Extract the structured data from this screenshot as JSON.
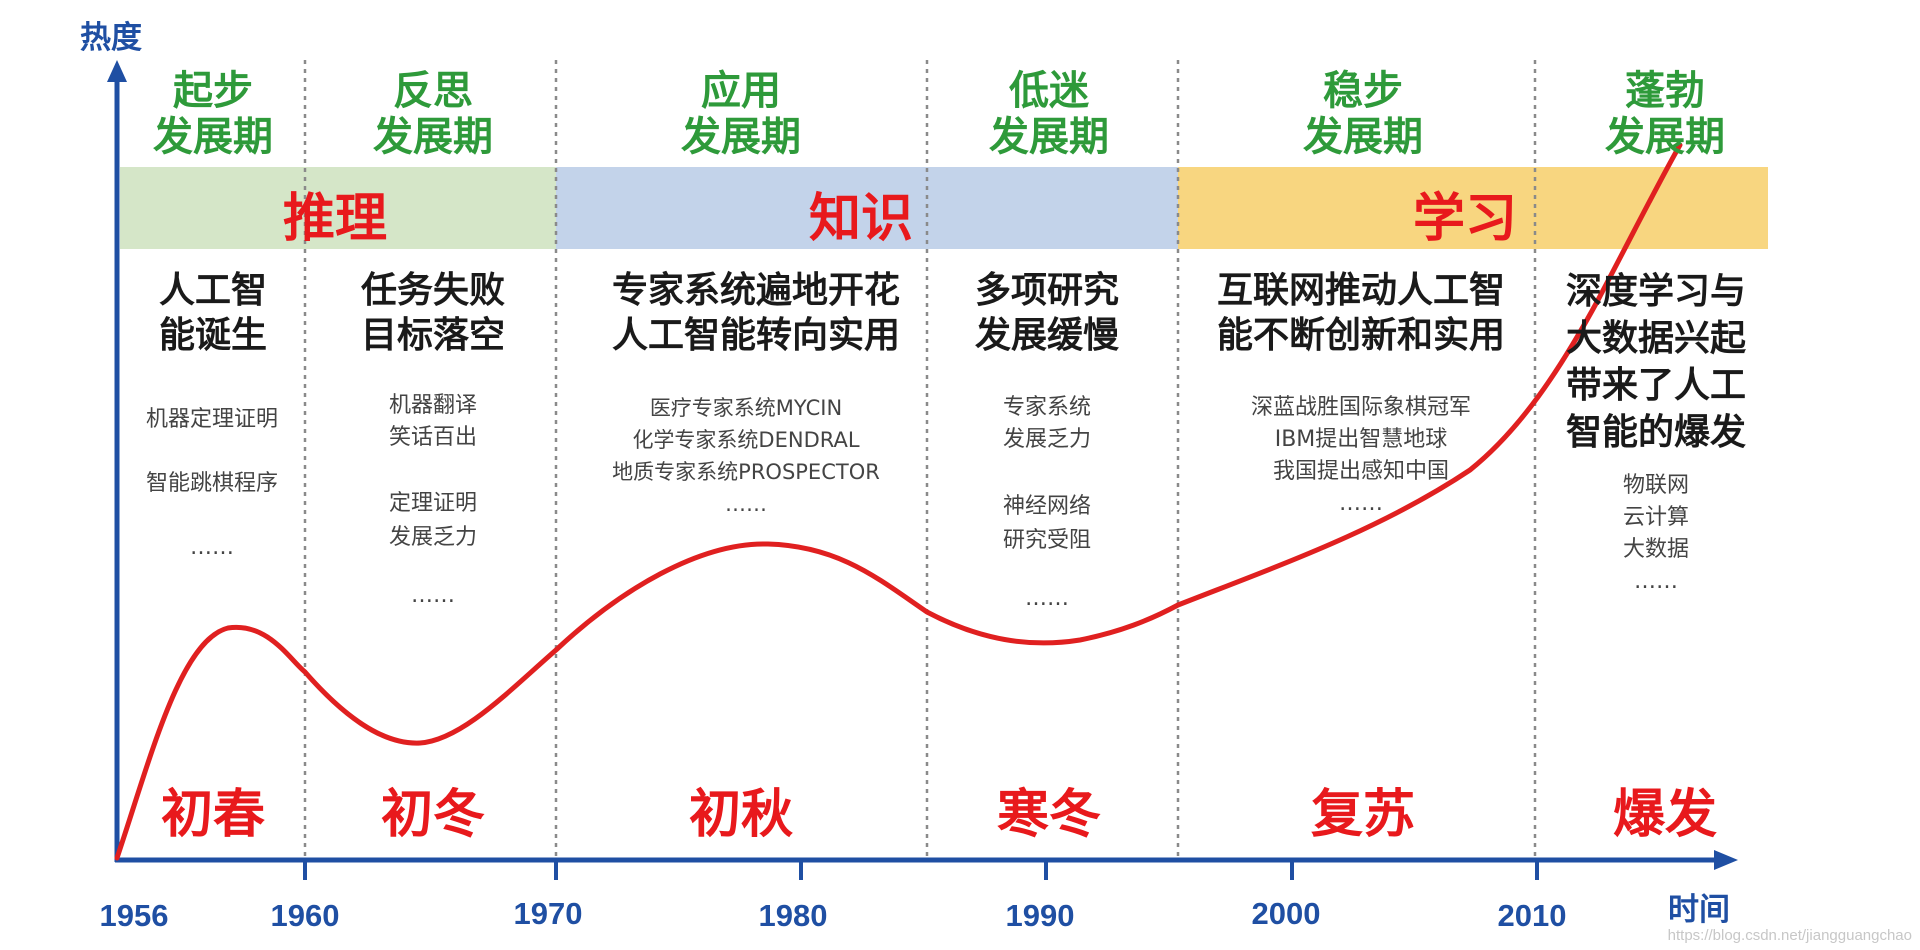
{
  "axes": {
    "y_label": "热度",
    "x_label": "时间",
    "years": [
      "1956",
      "1960",
      "1970",
      "1980",
      "1990",
      "2000",
      "2010"
    ]
  },
  "phases": [
    {
      "title_line1": "起步",
      "title_line2": "发展期"
    },
    {
      "title_line1": "反思",
      "title_line2": "发展期"
    },
    {
      "title_line1": "应用",
      "title_line2": "发展期"
    },
    {
      "title_line1": "低迷",
      "title_line2": "发展期"
    },
    {
      "title_line1": "稳步",
      "title_line2": "发展期"
    },
    {
      "title_line1": "蓬勃",
      "title_line2": "发展期"
    }
  ],
  "bands": [
    {
      "label": "推理",
      "color": "#d5e6c8"
    },
    {
      "label": "知识",
      "color": "#c3d3ea"
    },
    {
      "label": "学习",
      "color": "#f8d680"
    }
  ],
  "headlines": [
    [
      "人工智",
      "能诞生"
    ],
    [
      "任务失败",
      "目标落空"
    ],
    [
      "专家系统遍地开花",
      "人工智能转向实用"
    ],
    [
      "多项研究",
      "发展缓慢"
    ],
    [
      "互联网推动人工智",
      "能不断创新和实用"
    ],
    [
      "深度学习与",
      "大数据兴起",
      "带来了人工",
      "智能的爆发"
    ]
  ],
  "details": {
    "p0": [
      "机器定理证明",
      "智能跳棋程序",
      "……"
    ],
    "p1a": [
      "机器翻译",
      "笑话百出"
    ],
    "p1b": [
      "定理证明",
      "发展乏力",
      "……"
    ],
    "p2": [
      "医疗专家系统MYCIN",
      "化学专家系统DENDRAL",
      "地质专家系统PROSPECTOR",
      "……"
    ],
    "p3a": [
      "专家系统",
      "发展乏力"
    ],
    "p3b": [
      "神经网络",
      "研究受阻",
      "……"
    ],
    "p4": [
      "深蓝战胜国际象棋冠军",
      "IBM提出智慧地球",
      "我国提出感知中国",
      "……"
    ],
    "p5": [
      "物联网",
      "云计算",
      "大数据",
      "……"
    ]
  },
  "seasons": [
    "初春",
    "初冬",
    "初秋",
    "寒冬",
    "复苏",
    "爆发"
  ],
  "colors": {
    "axis": "#1f4fa3",
    "curve": "#e02020",
    "phase_title": "#2e9a3a",
    "divider": "#8a8a8a"
  },
  "watermark": "https://blog.csdn.net/jiangguangchao"
}
